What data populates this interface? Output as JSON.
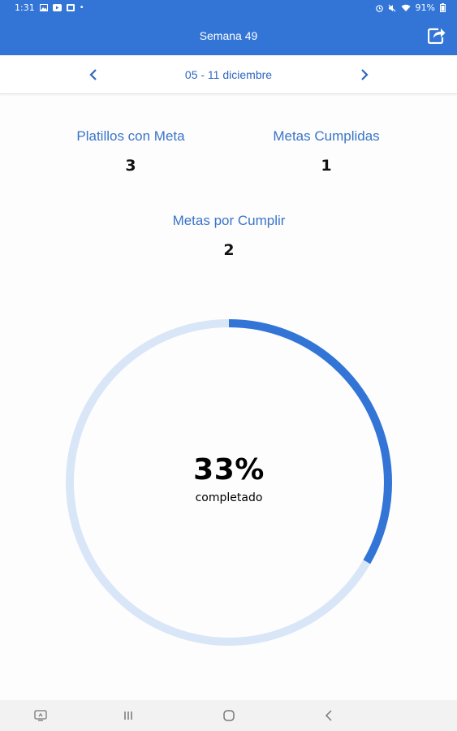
{
  "status_bar": {
    "time": "1:31",
    "battery": "91%",
    "left_icons": [
      "gallery-icon",
      "youtube-icon",
      "image-icon",
      "dot-icon"
    ],
    "right_icons": [
      "alarm-icon",
      "mute-icon",
      "wifi-icon",
      "battery-icon"
    ]
  },
  "app_bar": {
    "title": "Semana 49",
    "share_icon": "share-icon",
    "color": "#3375d6"
  },
  "date_nav": {
    "range": "05 - 11 diciembre",
    "prev_icon": "chevron-left-icon",
    "next_icon": "chevron-right-icon"
  },
  "stats": {
    "dishes_with_goal": {
      "label": "Platillos con Meta",
      "value": "3"
    },
    "goals_met": {
      "label": "Metas Cumplidas",
      "value": "1"
    },
    "goals_pending": {
      "label": "Metas por Cumplir",
      "value": "2"
    }
  },
  "progress": {
    "percent_text": "33%",
    "label": "completado",
    "fraction": 0.333,
    "track_color": "#d8e6f8",
    "fill_color": "#3375d6"
  },
  "nav_bar": {
    "icons": [
      "screenshot-icon",
      "recents-icon",
      "home-icon",
      "back-icon"
    ]
  }
}
